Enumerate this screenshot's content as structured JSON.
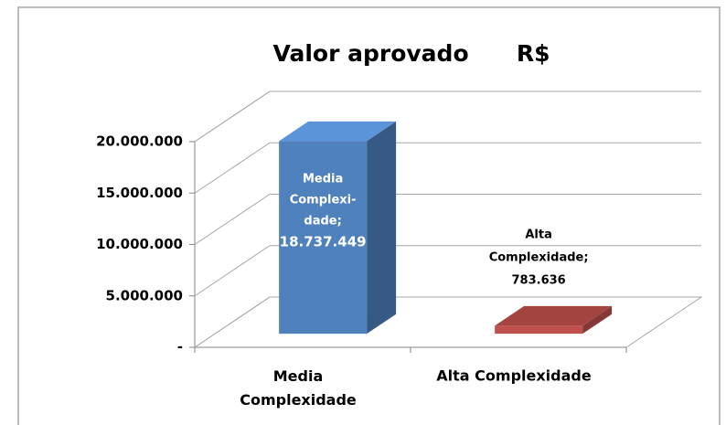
{
  "chart_data": {
    "type": "bar3d",
    "title": "Valor aprovado      R$",
    "categories": [
      "Media Complexidade",
      "Alta Complexidade"
    ],
    "values": [
      18737449,
      783636
    ],
    "value_labels": [
      "Media Complexi-dade; 18.737.449",
      "Alta Complexidade; 783.636"
    ],
    "colors": [
      "#4f81bd",
      "#c0504d"
    ],
    "ylim": [
      0,
      20000000
    ],
    "yticks": [
      {
        "value": 0,
        "label": "-"
      },
      {
        "value": 5000000,
        "label": "5.000.000"
      },
      {
        "value": 10000000,
        "label": "10.000.000"
      },
      {
        "value": 15000000,
        "label": "15.000.000"
      },
      {
        "value": 20000000,
        "label": "20.000.000"
      }
    ],
    "grid": true
  }
}
